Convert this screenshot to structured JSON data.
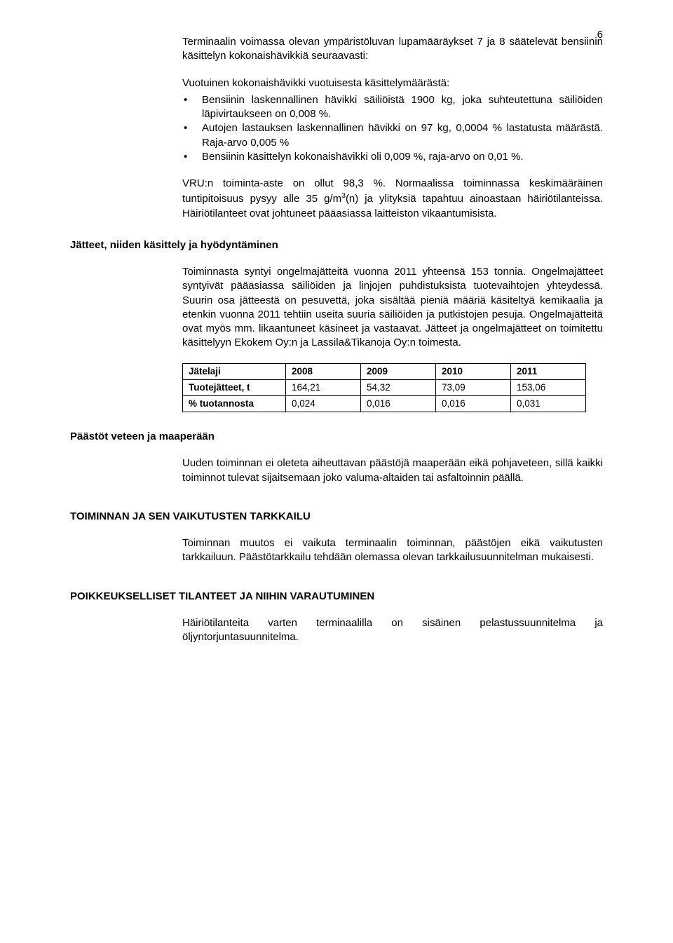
{
  "page_number": "6",
  "intro": "Terminaalin voimassa olevan ympäristöluvan lupamääräykset 7 ja 8 säätelevät bensiinin käsittelyn kokonaishävikkiä seuraavasti:",
  "sub_intro": "Vuotuinen kokonaishävikki vuotuisesta käsittelymäärästä:",
  "bullets": [
    "Bensiinin laskennallinen hävikki säiliöistä 1900 kg, joka suhteutettuna säiliöiden läpivirtaukseen on 0,008 %.",
    "Autojen lastauksen laskennallinen hävikki on 97 kg, 0,0004 % lastatusta määrästä. Raja-arvo 0,005 %",
    "Bensiinin käsittelyn kokonaishävikki oli 0,009 %, raja-arvo on 0,01 %."
  ],
  "vru_para_html": "VRU:n toiminta-aste on ollut 98,3 %. Normaalissa toiminnassa keskimääräinen tuntipitoisuus pysyy alle 35 g/m<sup>3</sup>(n) ja ylityksiä tapahtuu ainoastaan häiriötilanteissa. Häiriötilanteet ovat johtuneet pääasiassa laitteiston vikaantumisista.",
  "sec_waste_heading": "Jätteet, niiden käsittely ja hyödyntäminen",
  "sec_waste_para": "Toiminnasta syntyi ongelmajätteitä vuonna 2011 yhteensä 153 tonnia. Ongelmajätteet syntyivät pääasiassa säiliöiden ja linjojen puhdistuksista tuotevaihtojen yhteydessä. Suurin osa jätteestä on pesuvettä, joka sisältää pieniä määriä käsiteltyä kemikaalia ja etenkin vuonna 2011 tehtiin useita suuria säiliöiden ja putkistojen pesuja. Ongelmajätteitä ovat myös mm. likaantuneet käsineet ja vastaavat. Jätteet ja ongelmajätteet on toimitettu käsittelyyn Ekokem Oy:n ja Lassila&Tikanoja Oy:n toimesta.",
  "waste_table": {
    "columns": [
      "Jätelaji",
      "2008",
      "2009",
      "2010",
      "2011"
    ],
    "rows": [
      [
        "Tuotejätteet, t",
        "164,21",
        "54,32",
        "73,09",
        "153,06"
      ],
      [
        "% tuotannosta",
        "0,024",
        "0,016",
        "0,016",
        "0,031"
      ]
    ],
    "border_color": "#000000",
    "font_size": 13.5
  },
  "sec_emissions_heading": "Päästöt veteen ja maaperään",
  "sec_emissions_para": "Uuden toiminnan ei oleteta aiheuttavan päästöjä maaperään eikä pohjaveteen, sillä kaikki toiminnot tulevat sijaitsemaan joko valuma-altaiden tai asfaltoinnin päällä.",
  "sec_monitor_heading": "TOIMINNAN JA SEN VAIKUTUSTEN TARKKAILU",
  "sec_monitor_para": "Toiminnan muutos ei vaikuta terminaalin toiminnan, päästöjen eikä vaikutusten tarkkailuun. Päästötarkkailu tehdään olemassa olevan tarkkailusuunnitelman mukaisesti.",
  "sec_except_heading": "POIKKEUKSELLISET TILANTEET JA NIIHIN VARAUTUMINEN",
  "sec_except_para": "Häiriötilanteita varten terminaalilla on sisäinen pelastussuunnitelma ja öljyntorjuntasuunnitelma."
}
